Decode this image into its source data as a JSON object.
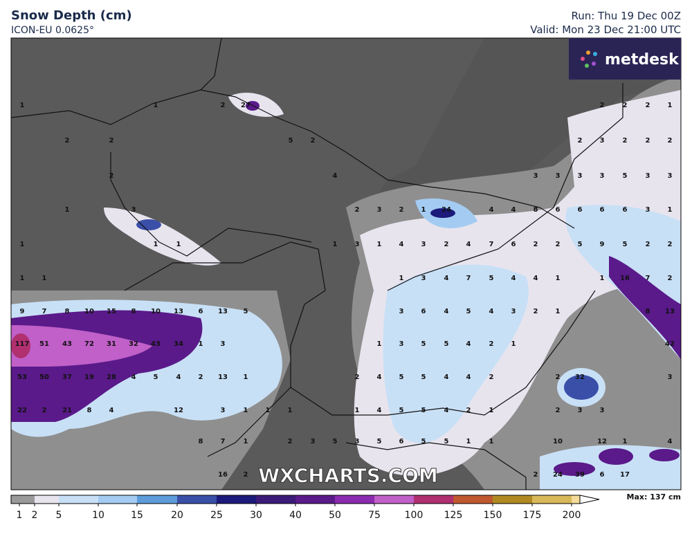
{
  "header": {
    "title": "Snow Depth (cm)",
    "model": "ICON-EU 0.0625°",
    "run": "Run: Thu 19 Dec 00Z",
    "valid": "Valid: Mon 23 Dec 21:00 UTC",
    "logo": "metdesk"
  },
  "watermark": "WXCHARTS.COM",
  "map_labels": [
    1,
    1,
    2,
    27,
    2,
    2,
    2,
    1,
    2,
    2,
    5,
    2,
    2,
    3,
    2,
    2,
    2,
    2,
    4,
    3,
    3,
    3,
    3,
    5,
    3,
    3,
    1,
    3,
    2,
    3,
    2,
    1,
    24,
    4,
    4,
    8,
    6,
    6,
    6,
    6,
    3,
    1,
    1,
    1,
    1,
    1,
    3,
    1,
    4,
    3,
    2,
    4,
    7,
    6,
    2,
    2,
    5,
    9,
    5,
    2,
    2,
    1,
    1,
    1,
    3,
    4,
    7,
    5,
    4,
    4,
    1,
    1,
    16,
    7,
    2,
    9,
    7,
    8,
    10,
    15,
    8,
    10,
    13,
    6,
    13,
    5,
    3,
    6,
    4,
    5,
    4,
    3,
    2,
    1,
    8,
    13,
    117,
    51,
    43,
    72,
    31,
    32,
    43,
    34,
    1,
    3,
    1,
    3,
    5,
    5,
    4,
    2,
    1,
    42,
    53,
    50,
    37,
    19,
    28,
    4,
    5,
    4,
    2,
    13,
    1,
    2,
    4,
    5,
    5,
    4,
    4,
    2,
    2,
    32,
    3,
    22,
    2,
    21,
    8,
    4,
    12,
    3,
    1,
    1,
    1,
    1,
    4,
    5,
    5,
    4,
    2,
    1,
    2,
    3,
    3,
    8,
    7,
    1,
    2,
    3,
    5,
    3,
    5,
    6,
    5,
    5,
    1,
    1,
    10,
    12,
    1,
    4,
    16,
    2,
    2,
    24,
    39,
    6,
    17
  ],
  "legend": {
    "ticks": [
      1,
      2,
      5,
      10,
      15,
      20,
      25,
      30,
      40,
      50,
      75,
      100,
      125,
      150,
      175,
      200
    ],
    "colors": [
      "#9a9a9a",
      "#e8e4ee",
      "#c8e0f6",
      "#a4ccf2",
      "#5d9bd9",
      "#3a4fa8",
      "#1c1a7a",
      "#3b1a78",
      "#5a1a8a",
      "#8a2bb0",
      "#c060c8",
      "#b03070",
      "#c05830",
      "#b08a20",
      "#d8b858",
      "#f5dc9a"
    ],
    "max": "Max: 137 cm"
  }
}
